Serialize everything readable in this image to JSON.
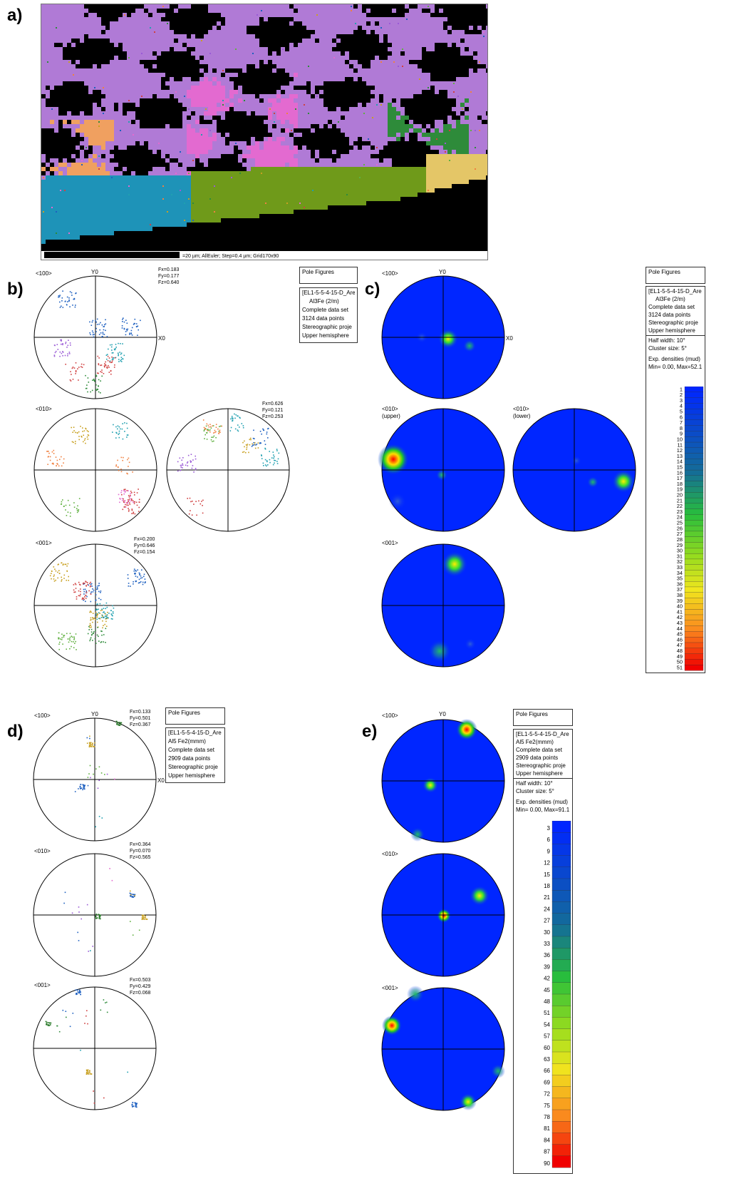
{
  "panel_labels": {
    "a": "a)",
    "b": "b)",
    "c": "c)",
    "d": "d)",
    "e": "e)"
  },
  "ebsd_map": {
    "scale_text": "=20 µm; AllEuler; Step=0.4 µm; Grid170x90",
    "colors": [
      "#b07ad6",
      "#e36ad0",
      "#1e93b8",
      "#6f9a1a",
      "#e4c667",
      "#f0a060",
      "#2e8b3a",
      "#000000"
    ]
  },
  "common": {
    "axis_y": "Y0",
    "axis_x": "X0"
  },
  "b": {
    "pf100": {
      "label": "<100>",
      "fx": "Fx=0.183",
      "fy": "Fy=0.177",
      "fz": "Fz=0.640"
    },
    "pf010": {
      "label": "<010>"
    },
    "pf010_right": {
      "fx": "Fx=0.626",
      "fy": "Fy=0.121",
      "fz": "Fz=0.253"
    },
    "pf001": {
      "label": "<001>",
      "fx": "Fx=0.200",
      "fy": "Fy=0.646",
      "fz": "Fz=0.154"
    },
    "info": {
      "title": "Pole Figures",
      "lines": [
        "[EL1-5-5-4-15-D_Are",
        "Al3Fe  (2/m)",
        "Complete data set",
        "3124 data points",
        "Stereographic proje",
        "Upper hemisphere"
      ]
    }
  },
  "c": {
    "pf100": {
      "label": "<100>"
    },
    "pf010_upper": {
      "label": "<010>",
      "sub": "(upper)"
    },
    "pf010_lower": {
      "label": "<010>",
      "sub": "(lower)"
    },
    "pf001": {
      "label": "<001>"
    },
    "info": {
      "title": "Pole Figures",
      "lines": [
        "[EL1-5-5-4-15-D_Are",
        "Al3Fe  (2/m)",
        "Complete data set",
        "3124 data points",
        "Stereographic proje",
        "Upper hemisphere"
      ],
      "half_width": "Half width: 10°",
      "cluster": "Cluster size: 5°",
      "density_title": "Exp. densities (mud)",
      "density_range": "Min= 0.00, Max=52.1"
    },
    "scale_ticks": [
      "1",
      "2",
      "3",
      "4",
      "5",
      "6",
      "7",
      "8",
      "9",
      "10",
      "11",
      "12",
      "13",
      "14",
      "15",
      "16",
      "17",
      "18",
      "19",
      "20",
      "21",
      "22",
      "23",
      "24",
      "25",
      "26",
      "27",
      "28",
      "29",
      "30",
      "31",
      "32",
      "33",
      "34",
      "35",
      "36",
      "37",
      "38",
      "39",
      "40",
      "41",
      "42",
      "43",
      "44",
      "45",
      "46",
      "47",
      "48",
      "49",
      "50",
      "51"
    ]
  },
  "d": {
    "pf100": {
      "label": "<100>",
      "fx": "Fx=0.133",
      "fy": "Fy=0.501",
      "fz": "Fz=0.367"
    },
    "pf010": {
      "label": "<010>",
      "fx": "Fx=0.364",
      "fy": "Fy=0.070",
      "fz": "Fz=0.565"
    },
    "pf001": {
      "label": "<001>",
      "fx": "Fx=0.503",
      "fy": "Fy=0.429",
      "fz": "Fz=0.068"
    },
    "info": {
      "title": "Pole Figures",
      "lines": [
        "[EL1-5-5-4-15-D_Are",
        "Al5 Fe2(mmm)",
        "Complete data set",
        "2909 data points",
        "Stereographic proje",
        "Upper hemisphere"
      ]
    }
  },
  "e": {
    "pf100": {
      "label": "<100>"
    },
    "pf010": {
      "label": "<010>"
    },
    "pf001": {
      "label": "<001>"
    },
    "info": {
      "title": "Pole Figures",
      "lines": [
        "[EL1-5-5-4-15-D_Are",
        "Al5 Fe2(mmm)",
        "Complete data set",
        "2909 data points",
        "Stereographic proje",
        "Upper hemisphere"
      ],
      "half_width": "Half width: 10°",
      "cluster": "Cluster size: 5°",
      "density_title": "Exp. densities (mud)",
      "density_range": "Min= 0.00, Max=91.1"
    },
    "scale_ticks": [
      "3",
      "6",
      "9",
      "12",
      "15",
      "18",
      "21",
      "24",
      "27",
      "30",
      "33",
      "36",
      "39",
      "42",
      "45",
      "48",
      "51",
      "54",
      "57",
      "60",
      "63",
      "66",
      "69",
      "72",
      "75",
      "78",
      "81",
      "84",
      "87",
      "90"
    ]
  }
}
